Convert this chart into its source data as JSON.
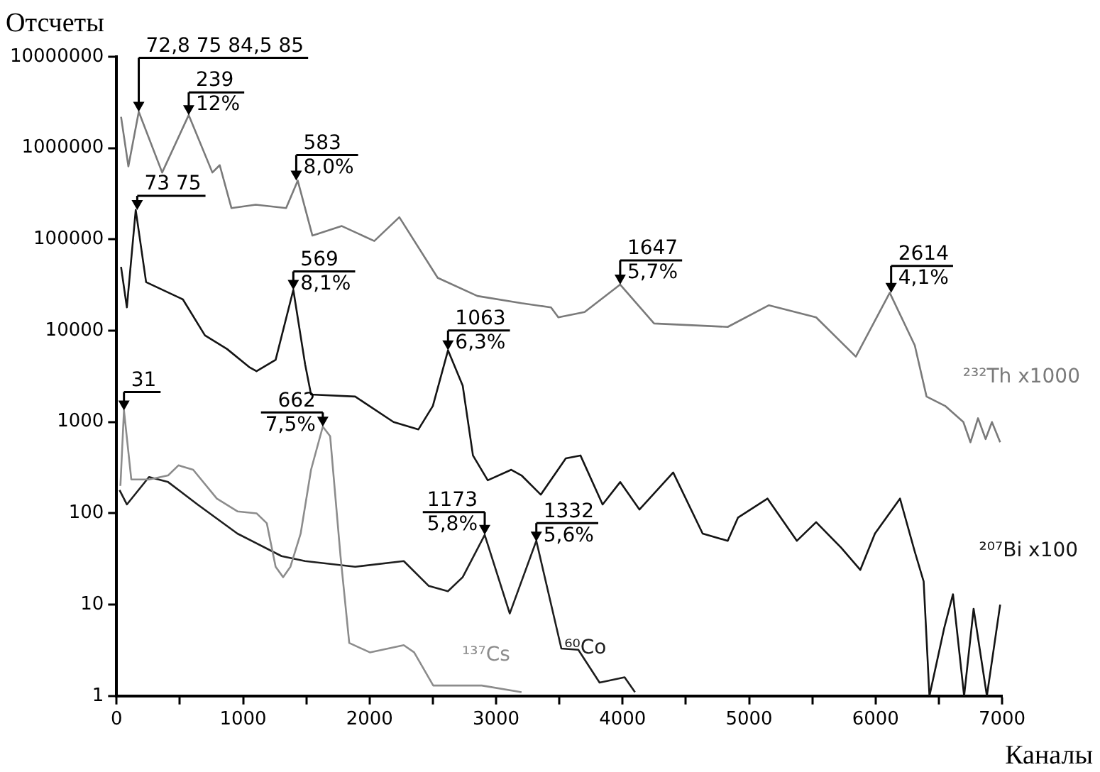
{
  "chart_data": {
    "type": "line",
    "xlabel": "Каналы",
    "ylabel": "Отсчеты",
    "log": true,
    "grid": false,
    "legend": false,
    "xlim": [
      0,
      7000
    ],
    "xticks": [
      0,
      {
        "value": 500,
        "label": null
      },
      1000,
      {
        "value": 1500,
        "label": null
      },
      2000,
      {
        "value": 2500,
        "label": null
      },
      3000,
      {
        "value": 3500,
        "label": null
      },
      4000,
      {
        "value": 4500,
        "label": null
      },
      5000,
      {
        "value": 5500,
        "label": null
      },
      6000,
      {
        "value": 6500,
        "label": null
      },
      7000
    ],
    "ylim": [
      1,
      10000000
    ],
    "yticks": [
      1,
      10,
      100,
      1000,
      10000,
      100000,
      1000000,
      10000000
    ],
    "series": [
      {
        "name": "²³²Th x1000",
        "color": "#7a7a7a",
        "x": [
          35,
          93,
          175,
          360,
          570,
          757,
          815,
          908,
          1100,
          1340,
          1432,
          1548,
          1780,
          2037,
          2235,
          2538,
          2852,
          3200,
          3434,
          3492,
          3700,
          3981,
          4249,
          4831,
          5157,
          5530,
          5844,
          6112,
          6310,
          6403,
          6550,
          6694,
          6750,
          6810,
          6870,
          6920,
          6985
        ],
        "values": [
          2200000,
          630000,
          2500000,
          540000,
          2300000,
          540000,
          650000,
          220000,
          240000,
          220000,
          440000,
          110000,
          140000,
          96000,
          175000,
          38000,
          24000,
          20000,
          18000,
          14000,
          16000,
          32000,
          12000,
          11000,
          19000,
          14000,
          5200,
          26000,
          6900,
          1900,
          1500,
          1000,
          600,
          1100,
          650,
          1000,
          600
        ]
      },
      {
        "name": "²⁰⁷Bi x100",
        "color": "#141414",
        "x": [
          35,
          81,
          151,
          233,
          524,
          698,
          873,
          1048,
          1106,
          1257,
          1397,
          1490,
          1537,
          1886,
          2189,
          2386,
          2500,
          2620,
          2736,
          2817,
          2934,
          3120,
          3201,
          3353,
          3551,
          3667,
          3842,
          3981,
          4133,
          4400,
          4633,
          4831,
          4913,
          5146,
          5378,
          5530,
          5728,
          5879,
          5995,
          6193,
          6310,
          6380,
          6426,
          6542,
          6612,
          6700,
          6775,
          6880,
          6985
        ],
        "values": [
          50000,
          18000,
          210000,
          34000,
          22000,
          8900,
          6300,
          4000,
          3600,
          4800,
          28000,
          4300,
          2000,
          1900,
          1000,
          830,
          1500,
          6100,
          2500,
          430,
          230,
          300,
          260,
          160,
          400,
          430,
          125,
          220,
          110,
          280,
          60,
          50,
          90,
          145,
          50,
          80,
          42,
          24,
          60,
          145,
          38,
          18,
          1,
          5.5,
          13,
          1,
          9,
          1,
          10
        ]
      },
      {
        "name": "¹³⁷Cs",
        "color": "#8c8c8c",
        "x": [
          30,
          58,
          116,
          256,
          407,
          489,
          605,
          792,
          955,
          1106,
          1187,
          1257,
          1316,
          1374,
          1455,
          1537,
          1630,
          1688,
          1770,
          1839,
          2002,
          2270,
          2352,
          2503,
          2887,
          3201
        ],
        "values": [
          200,
          1340,
          235,
          235,
          260,
          335,
          300,
          145,
          105,
          100,
          78,
          26,
          20,
          26,
          60,
          300,
          890,
          700,
          34,
          3.8,
          3,
          3.6,
          3,
          1.3,
          1.3,
          1.1
        ]
      },
      {
        "name": "⁶⁰Co",
        "color": "#1e1e1e",
        "x": [
          23,
          81,
          256,
          407,
          640,
          955,
          1304,
          1490,
          1886,
          2270,
          2468,
          2619,
          2736,
          2910,
          3108,
          3318,
          3516,
          3650,
          3818,
          4016,
          4098
        ],
        "values": [
          180,
          125,
          250,
          220,
          125,
          60,
          34,
          30,
          26,
          30,
          16,
          14,
          20,
          58,
          8,
          50,
          3.3,
          3.2,
          1.4,
          1.6,
          1.1
        ]
      }
    ],
    "annotations": [
      {
        "text": "72,8 75 84,5 85",
        "x": 175,
        "y": 2500000
      },
      {
        "text": "239\n12%",
        "x": 570,
        "y": 2300000
      },
      {
        "text": "583\n8,0%",
        "x": 1420,
        "y": 440000
      },
      {
        "text": "73 75",
        "x": 163,
        "y": 210000
      },
      {
        "text": "569\n8,1%",
        "x": 1397,
        "y": 28000
      },
      {
        "text": "1063\n6,3%",
        "x": 2620,
        "y": 6100
      },
      {
        "text": "1647\n5,7%",
        "x": 3981,
        "y": 32000
      },
      {
        "text": "2614\n4,1%",
        "x": 6123,
        "y": 26000
      },
      {
        "text": "31",
        "x": 58,
        "y": 1340
      },
      {
        "text": "662\n7,5%",
        "x": 1630,
        "y": 890
      },
      {
        "text": "1173\n5,8%",
        "x": 2910,
        "y": 58
      },
      {
        "text": "1332\n5,6%",
        "x": 3318,
        "y": 49
      }
    ]
  }
}
